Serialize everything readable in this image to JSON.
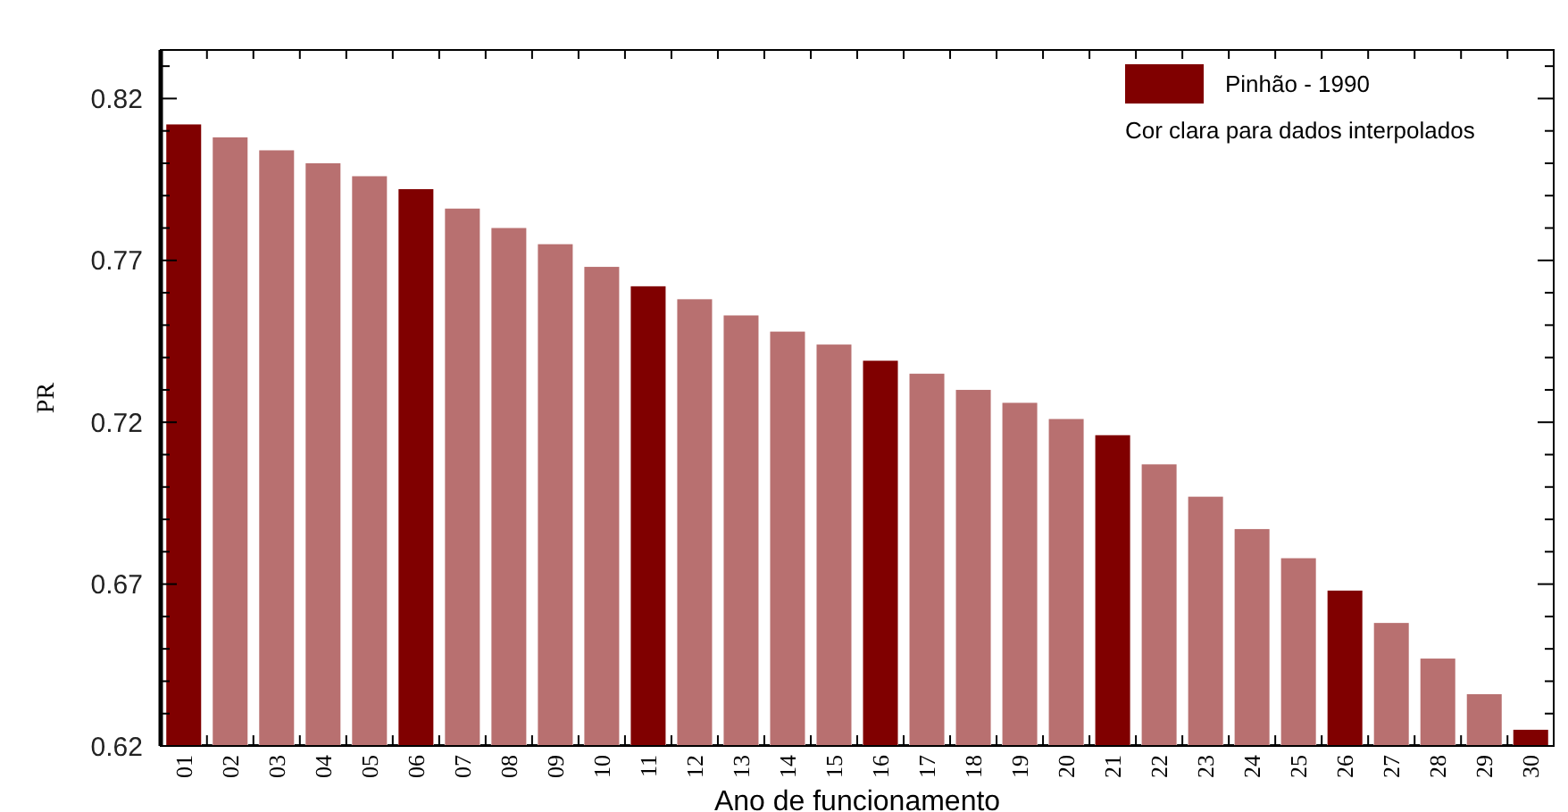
{
  "chart_data": {
    "type": "bar",
    "xlabel": "Ano de funcionamento",
    "ylabel": "PR",
    "categories": [
      "01",
      "02",
      "03",
      "04",
      "05",
      "06",
      "07",
      "08",
      "09",
      "10",
      "11",
      "12",
      "13",
      "14",
      "15",
      "16",
      "17",
      "18",
      "19",
      "20",
      "21",
      "22",
      "23",
      "24",
      "25",
      "26",
      "27",
      "28",
      "29",
      "30"
    ],
    "series": [
      {
        "name": "Pinhão - 1990",
        "color": "#800000",
        "colors": [
          "#800000",
          "#b87070",
          "#b87070",
          "#b87070",
          "#b87070",
          "#800000",
          "#b87070",
          "#b87070",
          "#b87070",
          "#b87070",
          "#800000",
          "#b87070",
          "#b87070",
          "#b87070",
          "#b87070",
          "#800000",
          "#b87070",
          "#b87070",
          "#b87070",
          "#b87070",
          "#800000",
          "#b87070",
          "#b87070",
          "#b87070",
          "#b87070",
          "#800000",
          "#b87070",
          "#b87070",
          "#b87070",
          "#800000"
        ],
        "values": [
          0.812,
          0.808,
          0.804,
          0.8,
          0.796,
          0.792,
          0.786,
          0.78,
          0.775,
          0.768,
          0.762,
          0.758,
          0.753,
          0.748,
          0.744,
          0.739,
          0.735,
          0.73,
          0.726,
          0.721,
          0.716,
          0.707,
          0.697,
          0.687,
          0.678,
          0.668,
          0.658,
          0.647,
          0.636,
          0.625
        ]
      }
    ],
    "ylim": [
      0.62,
      0.835
    ],
    "yticks": [
      0.62,
      {
        "value": 0.63,
        "label": null
      },
      {
        "value": 0.64,
        "label": null
      },
      {
        "value": 0.65,
        "label": null
      },
      {
        "value": 0.66,
        "label": null
      },
      0.67,
      {
        "value": 0.68,
        "label": null
      },
      {
        "value": 0.69,
        "label": null
      },
      {
        "value": 0.7,
        "label": null
      },
      {
        "value": 0.71,
        "label": null
      },
      0.72,
      {
        "value": 0.73,
        "label": null
      },
      {
        "value": 0.74,
        "label": null
      },
      {
        "value": 0.75,
        "label": null
      },
      {
        "value": 0.76,
        "label": null
      },
      0.77,
      {
        "value": 0.78,
        "label": null
      },
      {
        "value": 0.79,
        "label": null
      },
      {
        "value": 0.8,
        "label": null
      },
      {
        "value": 0.81,
        "label": null
      },
      0.82,
      {
        "value": 0.83,
        "label": null
      }
    ],
    "legend": "top right",
    "annotations": [
      "Cor clara para dados interpolados"
    ]
  }
}
